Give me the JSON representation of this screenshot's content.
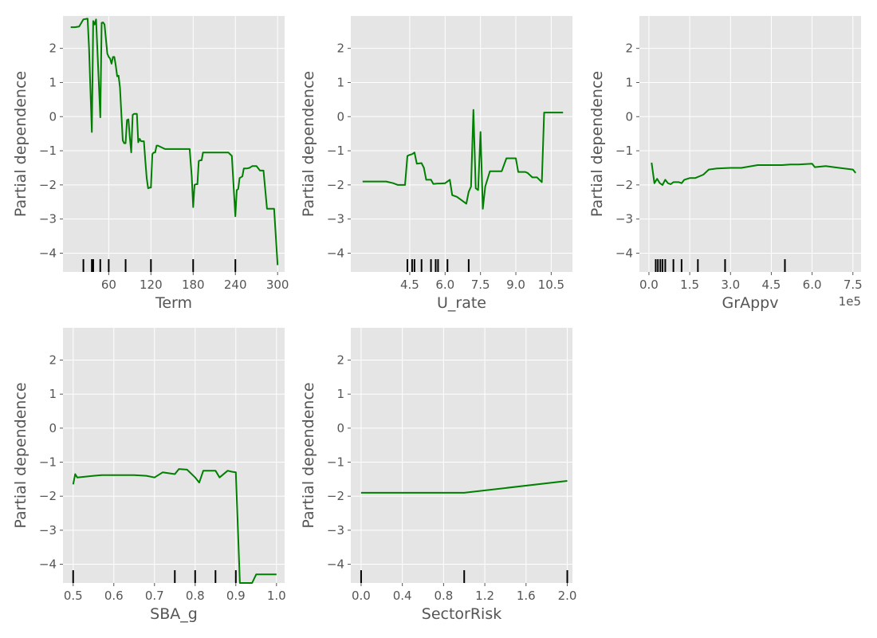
{
  "chart_data": [
    {
      "type": "line",
      "xlabel": "Term",
      "ylabel": "Partial dependence",
      "xlim": [
        -5,
        310
      ],
      "ylim": [
        -4.55,
        2.95
      ],
      "xticks": [
        60,
        120,
        180,
        240,
        300
      ],
      "xtick_labels": [
        "60",
        "120",
        "180",
        "240",
        "300"
      ],
      "yticks": [
        -4,
        -3,
        -2,
        -1,
        0,
        1,
        2
      ],
      "ytick_labels": [
        "−4",
        "−3",
        "−2",
        "−1",
        "0",
        "1",
        "2"
      ],
      "series_color": "#008000",
      "x": [
        6,
        12,
        18,
        24,
        30,
        32,
        36,
        38,
        40,
        42,
        48,
        50,
        52,
        54,
        58,
        60,
        62,
        64,
        66,
        68,
        70,
        72,
        74,
        76,
        80,
        82,
        84,
        86,
        88,
        90,
        92,
        94,
        96,
        98,
        100,
        102,
        104,
        106,
        108,
        110,
        112,
        114,
        116,
        118,
        120,
        122,
        124,
        126,
        128,
        130,
        140,
        150,
        160,
        170,
        175,
        178,
        180,
        182,
        184,
        186,
        188,
        190,
        192,
        194,
        196,
        200,
        210,
        220,
        230,
        235,
        240,
        242,
        244,
        246,
        250,
        252,
        256,
        260,
        264,
        270,
        275,
        280,
        285,
        290,
        295,
        300
      ],
      "y": [
        2.62,
        2.62,
        2.64,
        2.85,
        2.87,
        2.0,
        -0.45,
        2.8,
        2.7,
        2.85,
        -0.02,
        2.75,
        2.76,
        2.7,
        1.85,
        1.75,
        1.7,
        1.55,
        1.75,
        1.75,
        1.5,
        1.18,
        1.2,
        0.85,
        -0.7,
        -0.78,
        -0.78,
        -0.1,
        -0.08,
        -0.6,
        -1.05,
        0.05,
        0.08,
        0.08,
        0.08,
        -0.75,
        -0.65,
        -0.72,
        -0.72,
        -0.72,
        -1.3,
        -1.8,
        -2.1,
        -2.08,
        -2.08,
        -1.1,
        -1.05,
        -1.05,
        -0.85,
        -0.85,
        -0.95,
        -0.95,
        -0.95,
        -0.95,
        -0.95,
        -1.75,
        -2.65,
        -2.0,
        -1.98,
        -1.98,
        -1.3,
        -1.28,
        -1.28,
        -1.05,
        -1.05,
        -1.05,
        -1.05,
        -1.05,
        -1.05,
        -1.15,
        -2.92,
        -2.15,
        -2.12,
        -1.8,
        -1.75,
        -1.52,
        -1.52,
        -1.5,
        -1.45,
        -1.45,
        -1.58,
        -1.58,
        -2.7,
        -2.7,
        -2.7,
        -4.35
      ],
      "rug": [
        24,
        36,
        38,
        48,
        60,
        84,
        120,
        180,
        240
      ]
    },
    {
      "type": "line",
      "xlabel": "U_rate",
      "ylabel": "Partial dependence",
      "xlim": [
        2.0,
        11.4
      ],
      "ylim": [
        -4.55,
        2.95
      ],
      "xticks": [
        4.5,
        6.0,
        7.5,
        9.0,
        10.5
      ],
      "xtick_labels": [
        "4.5",
        "6.0",
        "7.5",
        "9.0",
        "10.5"
      ],
      "yticks": [
        -4,
        -3,
        -2,
        -1,
        0,
        1,
        2
      ],
      "ytick_labels": [
        "−4",
        "−3",
        "−2",
        "−1",
        "0",
        "1",
        "2"
      ],
      "series_color": "#008000",
      "x": [
        2.5,
        3.5,
        3.8,
        4.0,
        4.3,
        4.4,
        4.5,
        4.6,
        4.7,
        4.8,
        4.9,
        5.0,
        5.1,
        5.2,
        5.4,
        5.5,
        5.7,
        5.8,
        6.0,
        6.2,
        6.3,
        6.5,
        6.7,
        6.9,
        7.0,
        7.1,
        7.2,
        7.3,
        7.4,
        7.5,
        7.6,
        7.7,
        7.9,
        8.0,
        8.4,
        8.6,
        9.0,
        9.1,
        9.4,
        9.5,
        9.7,
        9.9,
        10.1,
        10.2,
        10.5,
        11.0
      ],
      "y": [
        -1.9,
        -1.9,
        -1.95,
        -2.0,
        -2.0,
        -1.15,
        -1.12,
        -1.1,
        -1.05,
        -1.38,
        -1.37,
        -1.36,
        -1.5,
        -1.85,
        -1.85,
        -1.97,
        -1.96,
        -1.96,
        -1.95,
        -1.85,
        -2.3,
        -2.35,
        -2.45,
        -2.55,
        -2.2,
        -2.05,
        0.2,
        -2.1,
        -2.15,
        -0.45,
        -2.7,
        -2.05,
        -1.6,
        -1.6,
        -1.6,
        -1.22,
        -1.22,
        -1.62,
        -1.62,
        -1.65,
        -1.78,
        -1.78,
        -1.92,
        0.12,
        0.12,
        0.12
      ],
      "rug": [
        4.4,
        4.6,
        4.7,
        5.0,
        5.4,
        5.6,
        5.7,
        6.1,
        7.0
      ]
    },
    {
      "type": "line",
      "xlabel": "GrAppv",
      "ylabel": "Partial dependence",
      "offset_text": "1e5",
      "xlim": [
        -0.35,
        7.8
      ],
      "ylim": [
        -4.55,
        2.95
      ],
      "xticks": [
        0.0,
        1.5,
        3.0,
        4.5,
        6.0,
        7.5
      ],
      "xtick_labels": [
        "0.0",
        "1.5",
        "3.0",
        "4.5",
        "6.0",
        "7.5"
      ],
      "yticks": [
        -4,
        -3,
        -2,
        -1,
        0,
        1,
        2
      ],
      "ytick_labels": [
        "−4",
        "−3",
        "−2",
        "−1",
        "0",
        "1",
        "2"
      ],
      "series_color": "#008000",
      "x": [
        0.1,
        0.2,
        0.3,
        0.4,
        0.5,
        0.6,
        0.7,
        0.8,
        0.9,
        1.0,
        1.1,
        1.2,
        1.3,
        1.5,
        1.7,
        2.0,
        2.2,
        2.5,
        3.0,
        3.4,
        4.0,
        4.5,
        4.9,
        5.2,
        5.5,
        6.0,
        6.1,
        6.5,
        6.8,
        7.0,
        7.5,
        7.6
      ],
      "y": [
        -1.35,
        -1.95,
        -1.82,
        -1.95,
        -2.0,
        -1.85,
        -1.95,
        -1.98,
        -1.92,
        -1.92,
        -1.92,
        -1.95,
        -1.85,
        -1.8,
        -1.8,
        -1.7,
        -1.55,
        -1.52,
        -1.5,
        -1.5,
        -1.42,
        -1.42,
        -1.42,
        -1.4,
        -1.4,
        -1.38,
        -1.48,
        -1.45,
        -1.48,
        -1.5,
        -1.55,
        -1.65
      ],
      "rug": [
        0.25,
        0.33,
        0.42,
        0.5,
        0.6,
        0.9,
        1.2,
        1.8,
        2.8,
        5.0
      ]
    },
    {
      "type": "line",
      "xlabel": "SBA_g",
      "ylabel": "Partial dependence",
      "xlim": [
        0.475,
        1.02
      ],
      "ylim": [
        -4.55,
        2.95
      ],
      "xticks": [
        0.5,
        0.6,
        0.7,
        0.8,
        0.9,
        1.0
      ],
      "xtick_labels": [
        "0.5",
        "0.6",
        "0.7",
        "0.8",
        "0.9",
        "1.0"
      ],
      "yticks": [
        -4,
        -3,
        -2,
        -1,
        0,
        1,
        2
      ],
      "ytick_labels": [
        "−4",
        "−3",
        "−2",
        "−1",
        "0",
        "1",
        "2"
      ],
      "series_color": "#008000",
      "x": [
        0.5,
        0.505,
        0.51,
        0.55,
        0.57,
        0.6,
        0.65,
        0.68,
        0.7,
        0.72,
        0.75,
        0.76,
        0.78,
        0.8,
        0.81,
        0.82,
        0.83,
        0.85,
        0.86,
        0.88,
        0.89,
        0.9,
        0.91,
        0.92,
        0.94,
        0.95,
        1.0
      ],
      "y": [
        -1.65,
        -1.35,
        -1.45,
        -1.4,
        -1.38,
        -1.38,
        -1.38,
        -1.4,
        -1.45,
        -1.3,
        -1.35,
        -1.2,
        -1.22,
        -1.45,
        -1.6,
        -1.25,
        -1.25,
        -1.25,
        -1.45,
        -1.25,
        -1.28,
        -1.3,
        -4.55,
        -4.55,
        -4.55,
        -4.3,
        -4.3
      ],
      "rug": [
        0.5,
        0.75,
        0.8,
        0.85,
        0.9
      ]
    },
    {
      "type": "line",
      "xlabel": "SectorRisk",
      "ylabel": "Partial dependence",
      "xlim": [
        -0.1,
        2.05
      ],
      "ylim": [
        -4.55,
        2.95
      ],
      "xticks": [
        0.0,
        0.4,
        0.8,
        1.2,
        1.6,
        2.0
      ],
      "xtick_labels": [
        "0.0",
        "0.4",
        "0.8",
        "1.2",
        "1.6",
        "2.0"
      ],
      "yticks": [
        -4,
        -3,
        -2,
        -1,
        0,
        1,
        2
      ],
      "ytick_labels": [
        "−4",
        "−3",
        "−2",
        "−1",
        "0",
        "1",
        "2"
      ],
      "series_color": "#008000",
      "x": [
        0.0,
        1.0,
        2.0
      ],
      "y": [
        -1.9,
        -1.9,
        -1.55
      ],
      "rug": [
        0.0,
        1.0,
        2.0
      ]
    }
  ]
}
